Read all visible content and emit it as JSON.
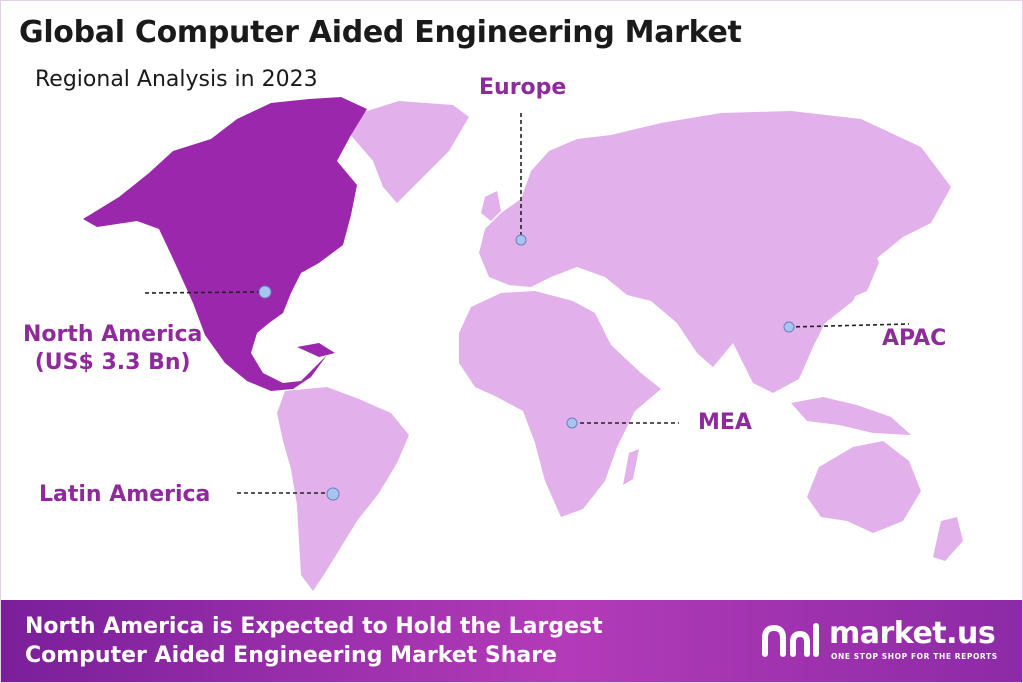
{
  "title": "Global Computer Aided Engineering Market",
  "subtitle": "Regional Analysis in 2023",
  "colors": {
    "highlight_region": "#9b27ad",
    "other_regions": "#e2b0ea",
    "label_text": "#8e2a9c",
    "marker": "#a9c4ef",
    "footer_start": "#7a1f9a",
    "footer_end": "#b33bb8"
  },
  "regions": {
    "north_america": {
      "name": "North America",
      "value": "(US$ 3.3 Bn)",
      "highlighted": true
    },
    "europe": {
      "name": "Europe"
    },
    "apac": {
      "name": "APAC"
    },
    "mea": {
      "name": "MEA"
    },
    "latin_america": {
      "name": "Latin America"
    }
  },
  "footer": {
    "line1": "North America is Expected to Hold the Largest",
    "line2": "Computer Aided Engineering Market Share"
  },
  "brand": {
    "name": "market.us",
    "tagline": "ONE STOP SHOP FOR THE REPORTS",
    "logo_icon": "market-us-logo-icon"
  }
}
